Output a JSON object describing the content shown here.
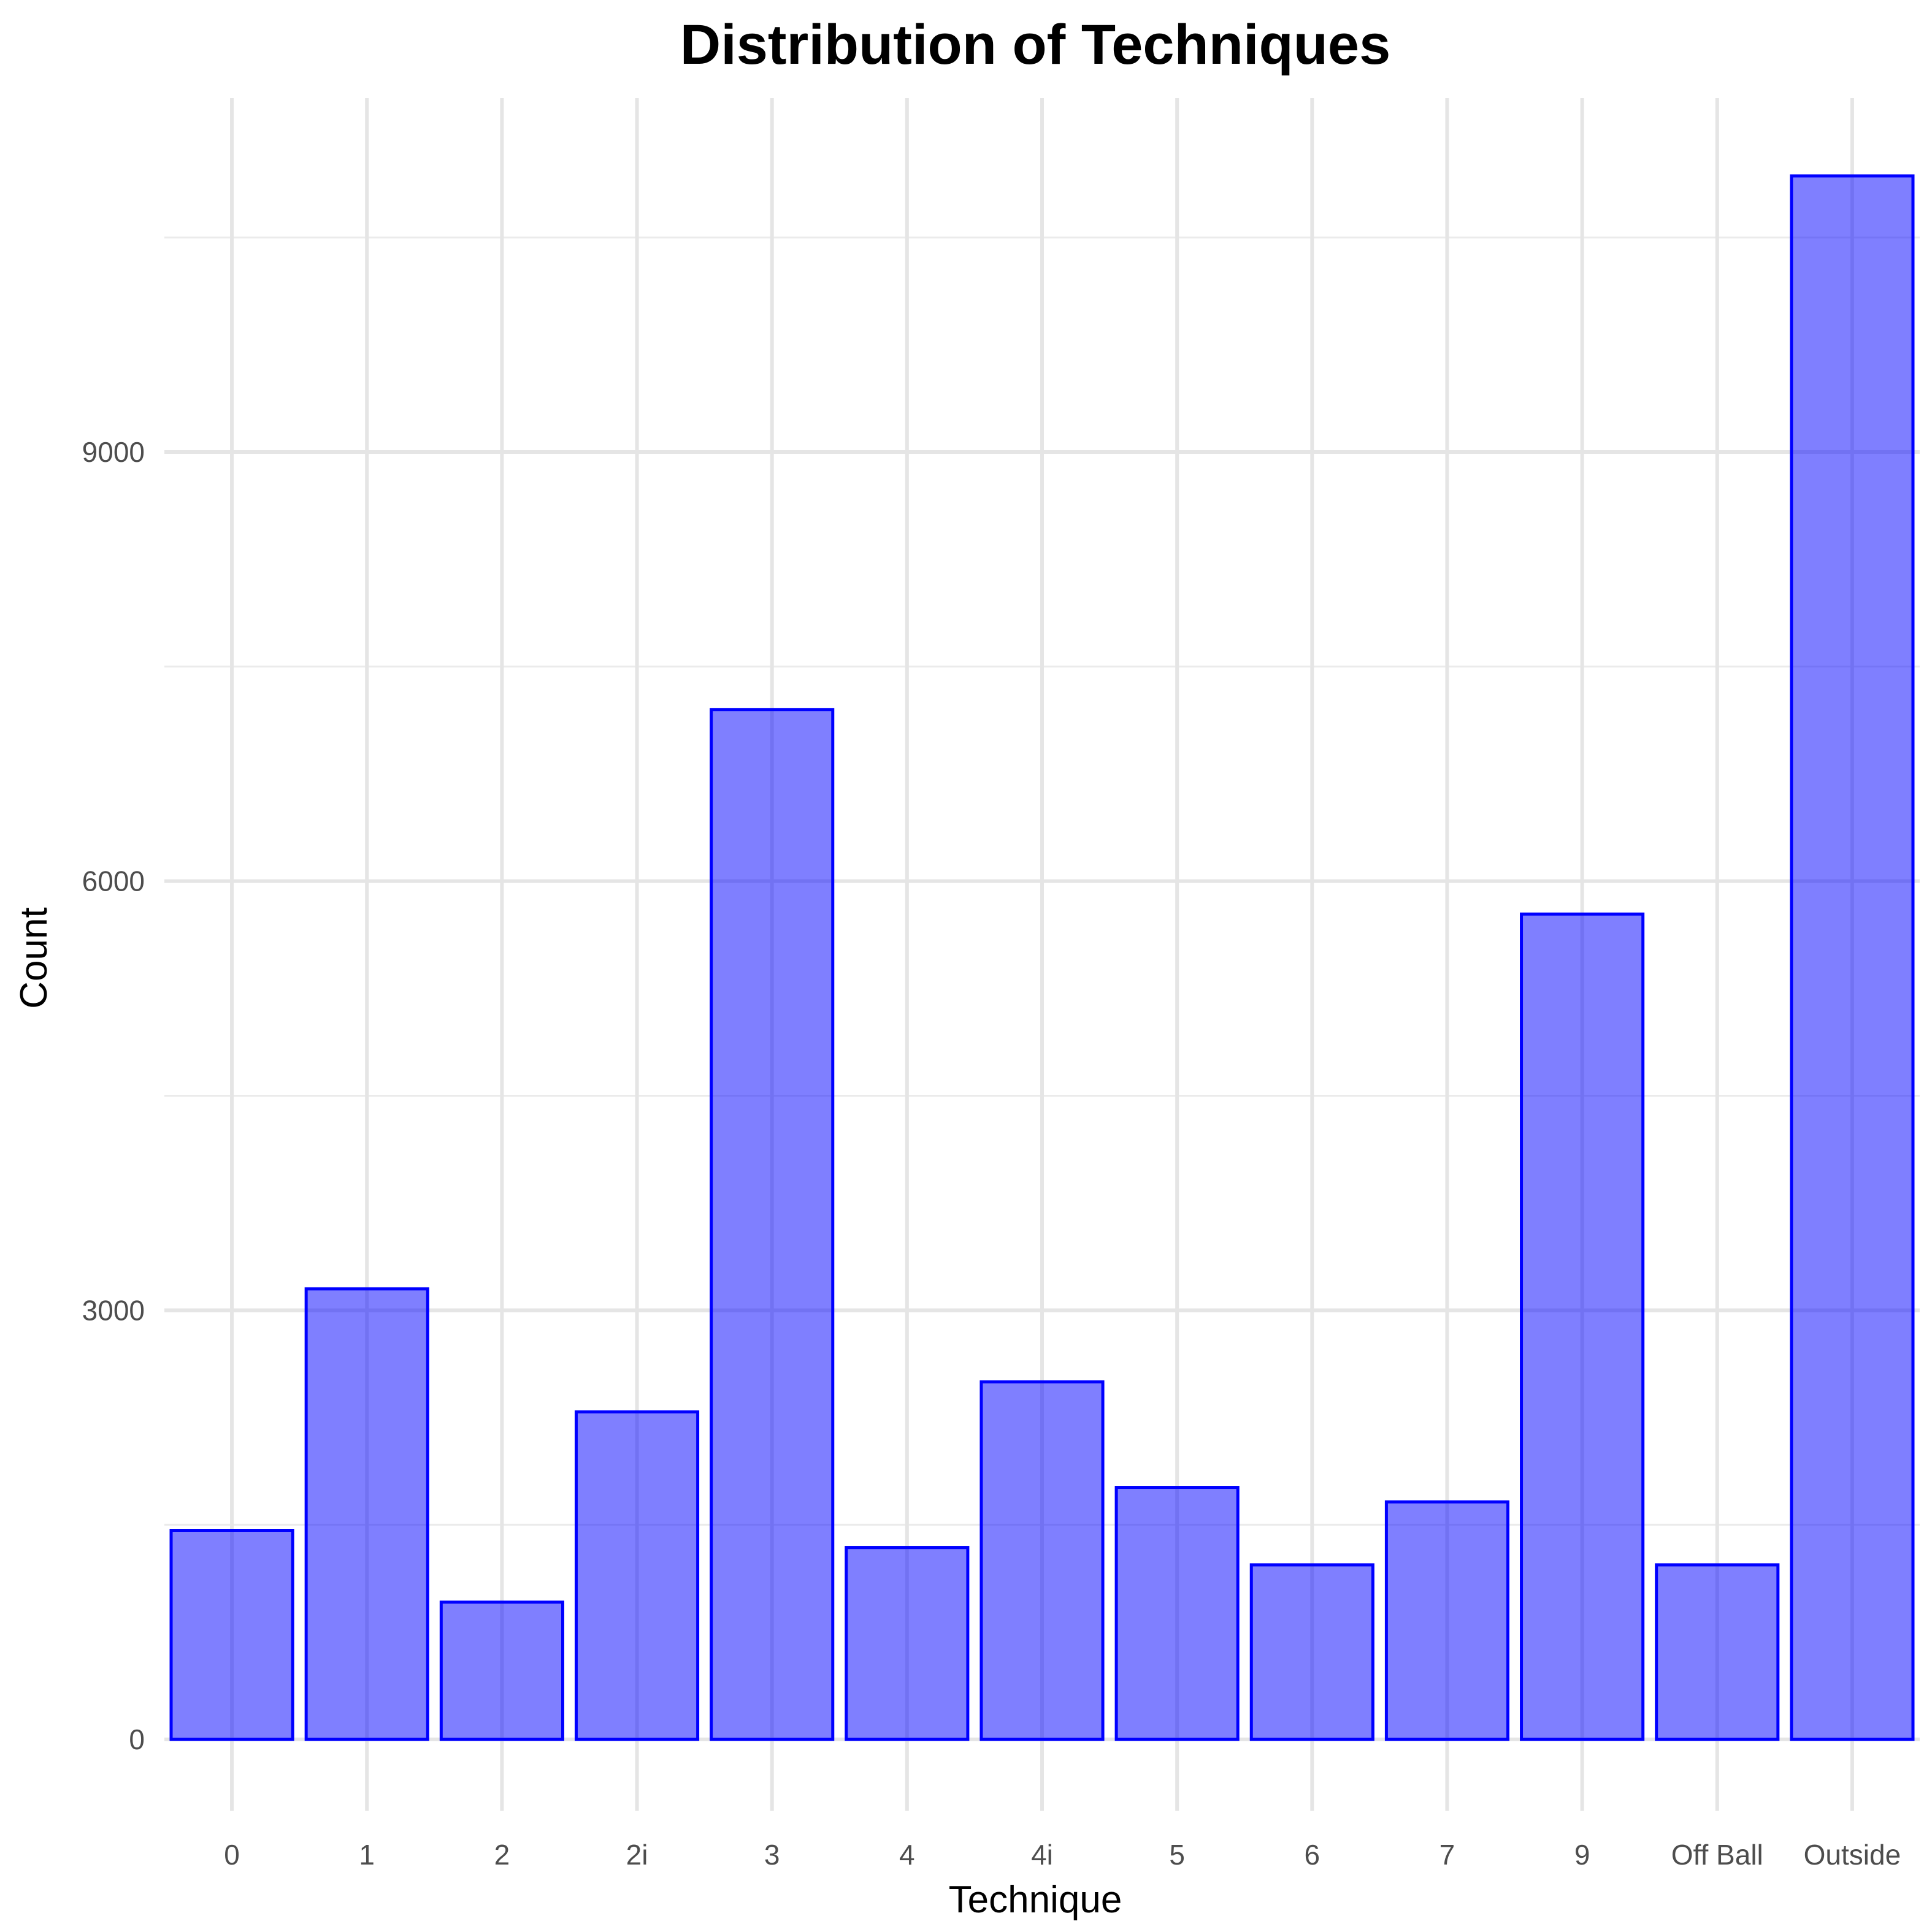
{
  "chart_data": {
    "type": "bar",
    "title": "Distribution of Techniques",
    "xlabel": "Technique",
    "ylabel": "Count",
    "categories": [
      "0",
      "1",
      "2",
      "2i",
      "3",
      "4",
      "4i",
      "5",
      "6",
      "7",
      "9",
      "Off Ball",
      "Outside"
    ],
    "values": [
      1460,
      3150,
      960,
      2290,
      7200,
      1340,
      2500,
      1760,
      1220,
      1660,
      5770,
      1220,
      10930
    ],
    "ylim": [
      -500,
      11500
    ],
    "yticks": [
      0,
      3000,
      6000,
      9000
    ],
    "yticks_minor": [
      1500,
      4500,
      7500,
      10500
    ],
    "grid": true,
    "legend": "none",
    "colors": {
      "bar_fill": "#0000ff",
      "bar_outline": "#0000ff",
      "grid": "#e5e5e5",
      "tick_text": "#4d4d4d",
      "text": "#000000"
    }
  }
}
